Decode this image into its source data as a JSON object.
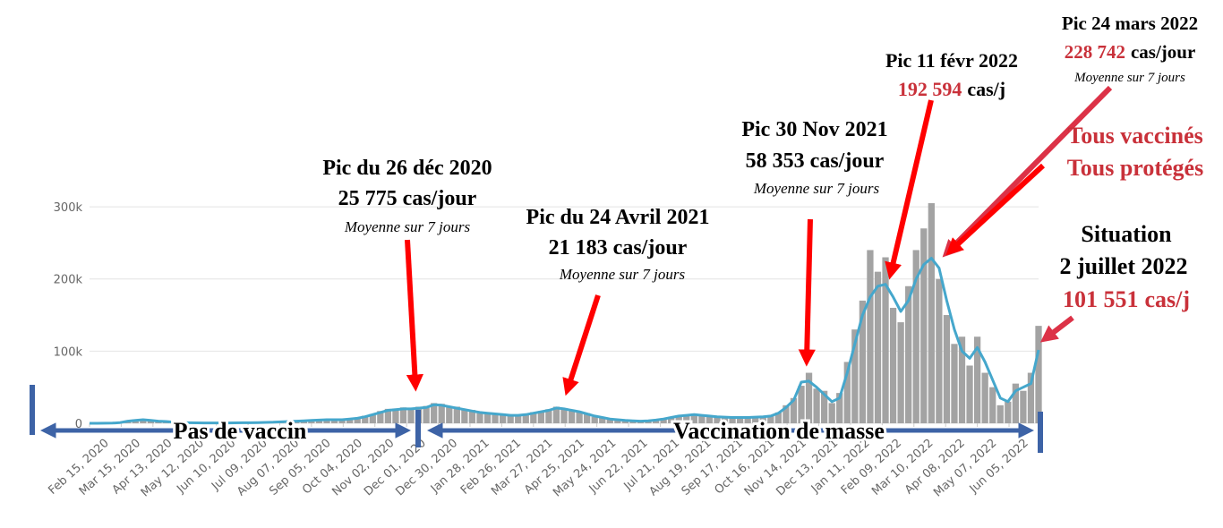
{
  "chart_data": {
    "type": "bar-line",
    "xlim": [
      "2020-02-15",
      "2022-07-02"
    ],
    "ylim": [
      0,
      310000
    ],
    "yticks": [
      0,
      {
        "value": 100000,
        "label": "100k"
      },
      {
        "value": 200000,
        "label": "200k"
      },
      {
        "value": 300000,
        "label": "300k"
      }
    ],
    "grid": true,
    "xticks": [
      {
        "value": "2020-02-15",
        "label": "Feb 15, 2020"
      },
      {
        "value": "2020-03-15",
        "label": "Mar 15, 2020"
      },
      {
        "value": "2020-04-13",
        "label": "Apr 13, 2020"
      },
      {
        "value": "2020-05-12",
        "label": "May 12, 2020"
      },
      {
        "value": "2020-06-10",
        "label": "Jun 10, 2020"
      },
      {
        "value": "2020-07-09",
        "label": "Jul 09, 2020"
      },
      {
        "value": "2020-08-07",
        "label": "Aug 07, 2020"
      },
      {
        "value": "2020-09-05",
        "label": "Sep 05, 2020"
      },
      {
        "value": "2020-10-04",
        "label": "Oct 04, 2020"
      },
      {
        "value": "2020-11-02",
        "label": "Nov 02, 2020"
      },
      {
        "value": "2020-12-01",
        "label": "Dec 01, 2020"
      },
      {
        "value": "2020-12-30",
        "label": "Dec 30, 2020"
      },
      {
        "value": "2021-01-28",
        "label": "Jan 28, 2021"
      },
      {
        "value": "2021-02-26",
        "label": "Feb 26, 2021"
      },
      {
        "value": "2021-03-27",
        "label": "Mar 27, 2021"
      },
      {
        "value": "2021-04-25",
        "label": "Apr 25, 2021"
      },
      {
        "value": "2021-05-24",
        "label": "May 24, 2021"
      },
      {
        "value": "2021-06-22",
        "label": "Jun 22, 2021"
      },
      {
        "value": "2021-07-21",
        "label": "Jul 21, 2021"
      },
      {
        "value": "2021-08-19",
        "label": "Aug 19, 2021"
      },
      {
        "value": "2021-09-17",
        "label": "Sep 17, 2021"
      },
      {
        "value": "2021-10-16",
        "label": "Oct 16, 2021"
      },
      {
        "value": "2021-11-14",
        "label": "Nov 14, 2021"
      },
      {
        "value": "2021-12-13",
        "label": "Dec 13, 2021"
      },
      {
        "value": "2022-01-11",
        "label": "Jan 11, 2022"
      },
      {
        "value": "2022-02-09",
        "label": "Feb 09, 2022"
      },
      {
        "value": "2022-03-10",
        "label": "Mar 10, 2022"
      },
      {
        "value": "2022-04-08",
        "label": "Apr 08, 2022"
      },
      {
        "value": "2022-05-07",
        "label": "May 07, 2022"
      },
      {
        "value": "2022-06-05",
        "label": "Jun 05, 2022"
      }
    ],
    "x": [
      "2020-02-15",
      "2020-02-22",
      "2020-02-29",
      "2020-03-07",
      "2020-03-14",
      "2020-03-21",
      "2020-03-28",
      "2020-04-04",
      "2020-04-11",
      "2020-04-18",
      "2020-04-25",
      "2020-05-02",
      "2020-05-09",
      "2020-05-16",
      "2020-05-23",
      "2020-05-30",
      "2020-06-06",
      "2020-06-13",
      "2020-06-20",
      "2020-06-27",
      "2020-07-04",
      "2020-07-11",
      "2020-07-18",
      "2020-07-25",
      "2020-08-01",
      "2020-08-08",
      "2020-08-15",
      "2020-08-22",
      "2020-08-29",
      "2020-09-05",
      "2020-09-12",
      "2020-09-19",
      "2020-09-26",
      "2020-10-03",
      "2020-10-10",
      "2020-10-17",
      "2020-10-24",
      "2020-10-31",
      "2020-11-07",
      "2020-11-14",
      "2020-11-21",
      "2020-11-28",
      "2020-12-05",
      "2020-12-12",
      "2020-12-19",
      "2020-12-26",
      "2021-01-02",
      "2021-01-09",
      "2021-01-16",
      "2021-01-23",
      "2021-01-30",
      "2021-02-06",
      "2021-02-13",
      "2021-02-20",
      "2021-02-27",
      "2021-03-06",
      "2021-03-13",
      "2021-03-20",
      "2021-03-27",
      "2021-04-03",
      "2021-04-10",
      "2021-04-17",
      "2021-04-24",
      "2021-05-01",
      "2021-05-08",
      "2021-05-15",
      "2021-05-22",
      "2021-05-29",
      "2021-06-05",
      "2021-06-12",
      "2021-06-19",
      "2021-06-26",
      "2021-07-03",
      "2021-07-10",
      "2021-07-17",
      "2021-07-24",
      "2021-07-31",
      "2021-08-07",
      "2021-08-14",
      "2021-08-21",
      "2021-08-28",
      "2021-09-04",
      "2021-09-11",
      "2021-09-18",
      "2021-09-25",
      "2021-10-02",
      "2021-10-09",
      "2021-10-16",
      "2021-10-23",
      "2021-10-30",
      "2021-11-06",
      "2021-11-13",
      "2021-11-20",
      "2021-11-27",
      "2021-12-04",
      "2021-12-11",
      "2021-12-18",
      "2021-12-25",
      "2022-01-01",
      "2022-01-08",
      "2022-01-15",
      "2022-01-22",
      "2022-01-29",
      "2022-02-05",
      "2022-02-12",
      "2022-02-19",
      "2022-02-26",
      "2022-03-05",
      "2022-03-12",
      "2022-03-19",
      "2022-03-26",
      "2022-04-02",
      "2022-04-09",
      "2022-04-16",
      "2022-04-23",
      "2022-04-30",
      "2022-05-07",
      "2022-05-14",
      "2022-05-21",
      "2022-05-28",
      "2022-06-04",
      "2022-06-11",
      "2022-06-18",
      "2022-06-25",
      "2022-07-02"
    ],
    "series": [
      {
        "type": "bar",
        "color": "#a3a3a3",
        "values": [
          0,
          0,
          100,
          400,
          1500,
          3500,
          5500,
          6000,
          4500,
          3500,
          2000,
          1200,
          900,
          700,
          500,
          400,
          500,
          400,
          600,
          500,
          800,
          700,
          1100,
          1000,
          1800,
          1900,
          2800,
          3200,
          4200,
          4000,
          5000,
          5200,
          5800,
          5200,
          6800,
          7500,
          10500,
          13000,
          17000,
          20000,
          20500,
          22000,
          19000,
          23000,
          24000,
          28000,
          27000,
          22000,
          23000,
          18000,
          18500,
          14000,
          15500,
          12000,
          13000,
          10500,
          12000,
          11500,
          15500,
          17000,
          19500,
          23000,
          21000,
          19000,
          15000,
          14000,
          9000,
          8500,
          5500,
          5500,
          3500,
          3800,
          2800,
          4000,
          4200,
          7000,
          8500,
          11000,
          10500,
          13500,
          10000,
          11000,
          8500,
          9500,
          7500,
          8500,
          7500,
          9500,
          8500,
          11000,
          15000,
          25000,
          35000,
          52000,
          70000,
          48000,
          45000,
          28000,
          42000,
          85000,
          130000,
          170000,
          240000,
          210000,
          230000,
          160000,
          140000,
          190000,
          240000,
          270000,
          305000,
          200000,
          150000,
          110000,
          120000,
          80000,
          120000,
          70000,
          50000,
          25000,
          30000,
          55000,
          45000,
          70000,
          135000
        ]
      },
      {
        "type": "line",
        "color": "#45a7cc",
        "values": [
          0,
          0,
          100,
          300,
          1000,
          3000,
          4000,
          5000,
          4000,
          3000,
          2500,
          1500,
          1000,
          800,
          600,
          500,
          500,
          500,
          500,
          600,
          700,
          800,
          1000,
          1200,
          1500,
          2000,
          2500,
          3000,
          3500,
          4000,
          4500,
          5000,
          5000,
          5000,
          6000,
          7000,
          9000,
          12000,
          15000,
          18000,
          19000,
          20000,
          20000,
          21000,
          22000,
          25775,
          25000,
          23000,
          21000,
          19000,
          17000,
          15000,
          14000,
          13000,
          12000,
          11000,
          11000,
          12000,
          14000,
          16000,
          18000,
          21183,
          20000,
          18000,
          16000,
          13000,
          10000,
          8000,
          6000,
          5000,
          4000,
          3500,
          3000,
          3500,
          4500,
          6000,
          8000,
          10000,
          11000,
          12000,
          11000,
          10000,
          9000,
          8500,
          8000,
          8000,
          8000,
          8500,
          9000,
          10000,
          14000,
          22000,
          32000,
          57000,
          58353,
          50000,
          40000,
          30000,
          35000,
          70000,
          110000,
          150000,
          175000,
          190000,
          192594,
          175000,
          155000,
          170000,
          200000,
          220000,
          228742,
          215000,
          170000,
          130000,
          100000,
          90000,
          105000,
          85000,
          60000,
          35000,
          30000,
          45000,
          50000,
          55000,
          101551
        ]
      }
    ],
    "annotations": [
      {
        "title": "Pic du 26 déc 2020",
        "value": "25 775 cas/jour",
        "note": "Moyenne sur 7 jours"
      },
      {
        "title": "Pic du 24 Avril 2021",
        "value": "21 183 cas/jour",
        "note": "Moyenne sur 7 jours"
      },
      {
        "title": "Pic 30 Nov 2021",
        "value": "58 353 cas/jour",
        "note": "Moyenne sur 7 jours"
      },
      {
        "title": "Pic 11 févr 2022",
        "value": "192 594",
        "unit": "cas/j"
      },
      {
        "title": "Pic 24 mars 2022",
        "value": "228 742",
        "unit": "cas/jour",
        "note": "Moyenne sur 7 jours"
      },
      {
        "title": "Tous vaccinés",
        "value": "Tous protégés"
      },
      {
        "title": "Situation",
        "date": "2 juillet 2022",
        "value": "101 551",
        "unit": "cas/j"
      }
    ],
    "phases": [
      "Pas de vaccin",
      "Vaccination de masse"
    ]
  }
}
